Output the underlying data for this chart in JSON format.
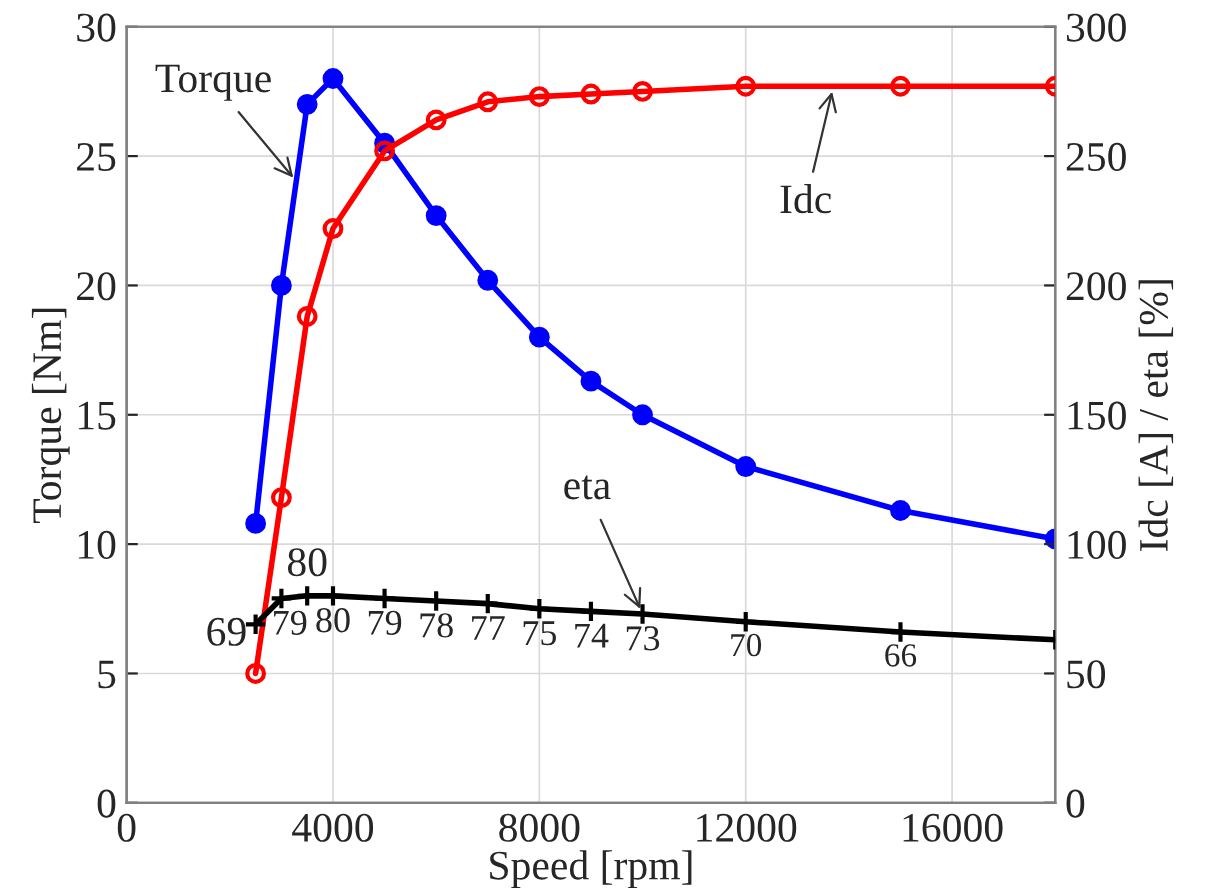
{
  "chart_data": {
    "type": "line",
    "xlabel": "Speed [rpm]",
    "ylabel": "Torque [Nm]",
    "y2label": "Idc [A] / eta [%]",
    "xlim": [
      0,
      18000
    ],
    "xticks": [
      0,
      4000,
      8000,
      12000,
      16000
    ],
    "ylim": [
      0,
      30
    ],
    "yticks": [
      0,
      5,
      10,
      15,
      20,
      25,
      30
    ],
    "y2lim": [
      0,
      300
    ],
    "y2ticks": [
      0,
      50,
      100,
      150,
      200,
      250,
      300
    ],
    "grid": true,
    "legend": false,
    "line_style": "solid",
    "series": [
      {
        "color": "#0000ff",
        "marker": "circle",
        "x": [
          2500,
          3000,
          3500,
          4000,
          5000,
          6000,
          7000,
          8000,
          9000,
          10000,
          12000,
          15000,
          18000
        ],
        "values": [
          10.8,
          20,
          27,
          28,
          25.5,
          22.7,
          20.2,
          18,
          16.3,
          15,
          13,
          11.3,
          10.2
        ]
      },
      {
        "color": "#ff0000",
        "marker": "circle",
        "axis": "y2",
        "x": [
          2500,
          3000,
          3500,
          4000,
          5000,
          6000,
          7000,
          8000,
          9000,
          10000,
          12000,
          15000,
          18000
        ],
        "values": [
          50,
          118,
          188,
          222,
          252,
          264,
          271,
          273,
          274,
          275,
          277,
          277,
          277
        ]
      },
      {
        "color": "#000000",
        "marker": "cross",
        "axis": "y2",
        "x": [
          2500,
          3000,
          3500,
          4000,
          5000,
          6000,
          7000,
          8000,
          9000,
          10000,
          12000,
          15000,
          18000
        ],
        "values": [
          69,
          79,
          80,
          80,
          79,
          78,
          77,
          75,
          74,
          73,
          70,
          66,
          63
        ],
        "value_labels": [
          "69",
          "79",
          "80",
          "80",
          "79",
          "78",
          "77",
          "75",
          "74",
          "73",
          "70",
          "66",
          null
        ]
      }
    ],
    "annotations": [
      {
        "text": "Torque",
        "x": 3300,
        "y": 24
      },
      {
        "text": "Idc",
        "x": 13700,
        "y": 27.7
      },
      {
        "text": "eta",
        "x": 10000,
        "y": 7.3
      }
    ]
  }
}
